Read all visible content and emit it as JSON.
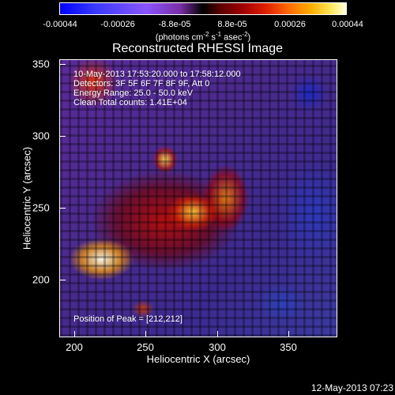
{
  "colorbar": {
    "ticks": [
      "-0.00044",
      "-0.00026",
      "-8.8e-05",
      "8.8e-05",
      "0.00026",
      "0.00044"
    ],
    "unit_prefix": "(photons cm",
    "unit_exp1": "-2",
    "unit_mid": " s",
    "unit_exp2": "-1",
    "unit_mid2": " asec",
    "unit_exp3": "-2",
    "unit_suffix": ")"
  },
  "image": {
    "title": "Reconstructed RHESSI Image",
    "info_lines": [
      "10-May-2013 17:53:20.000 to 17:58:12.000",
      "Detectors: 3F 5F 6F 7F 8F 9F, Att 0",
      "Energy Range: 25.0 - 50.0 keV",
      "Clean    Total counts: 1.41E+04"
    ],
    "peak_text": "Position of Peak = [212,212]",
    "x_label": "Heliocentric X (arcsec)",
    "y_label": "Heliocentric Y (arcsec)",
    "x_ticks": [
      "200",
      "250",
      "300",
      "350"
    ],
    "y_ticks": [
      "350",
      "300",
      "250",
      "200"
    ]
  },
  "footer": {
    "timestamp": "12-May-2013 07:23"
  }
}
